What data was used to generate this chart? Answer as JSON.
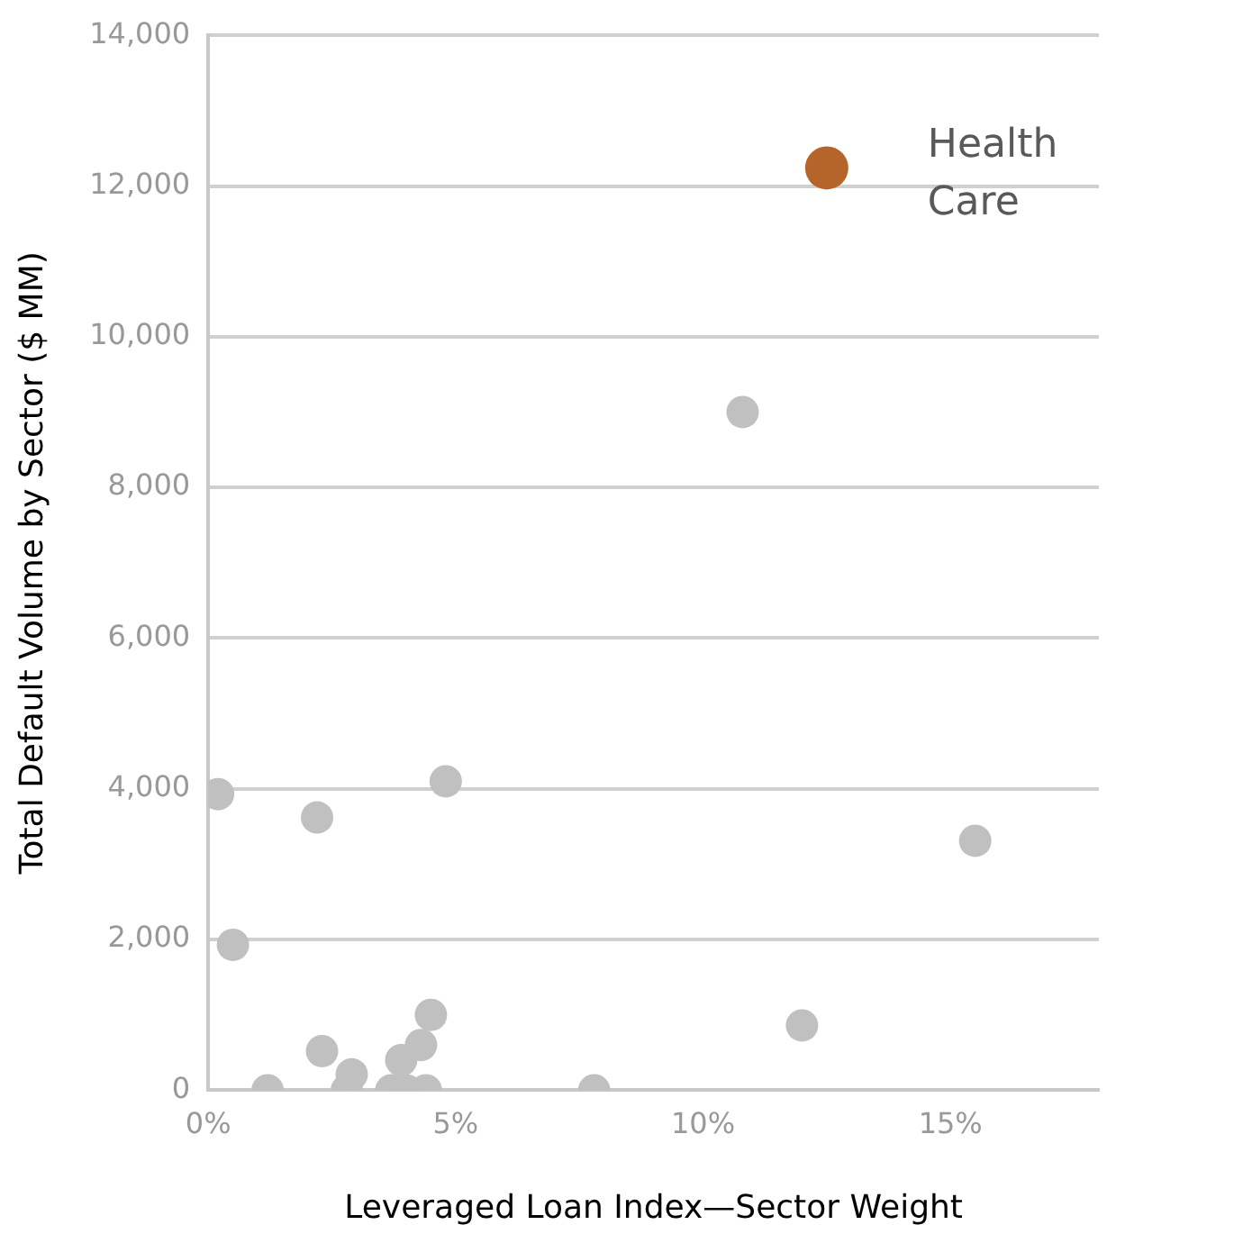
{
  "chart_data": {
    "type": "scatter",
    "xlabel": "Leveraged Loan Index—Sector Weight",
    "ylabel": "Total Default Volume by Sector ($ MM)",
    "xlim": [
      0,
      18
    ],
    "xticks": [
      {
        "value": 0,
        "label": "0%"
      },
      {
        "value": 5,
        "label": "5%"
      },
      {
        "value": 10,
        "label": "10%"
      },
      {
        "value": 15,
        "label": "15%"
      }
    ],
    "ylim": [
      0,
      14000
    ],
    "yticks": [
      0,
      {
        "value": 2000,
        "label": "2,000"
      },
      {
        "value": 4000,
        "label": "4,000"
      },
      {
        "value": 6000,
        "label": "6,000"
      },
      {
        "value": 8000,
        "label": "8,000"
      },
      {
        "value": 10000,
        "label": "10,000"
      },
      {
        "value": 12000,
        "label": "12,000"
      },
      {
        "value": 14000,
        "label": "14,000"
      }
    ],
    "grid": "y",
    "legend": false,
    "marker": "circle",
    "series": [
      {
        "color": "#c0c0c0",
        "x": [
          0.2,
          0.5,
          1.2,
          2.2,
          2.3,
          2.9,
          2.8,
          3.7,
          4.0,
          3.9,
          4.3,
          4.4,
          4.5,
          4.8,
          7.8,
          10.8,
          12.0,
          15.5
        ],
        "values": [
          3930,
          1930,
          0,
          3620,
          520,
          210,
          0,
          0,
          0,
          400,
          600,
          0,
          1000,
          4100,
          0,
          9000,
          860,
          3310
        ]
      },
      {
        "name": "Health Care",
        "color": "#b5652a",
        "x": [
          12.5
        ],
        "values": [
          12240
        ]
      }
    ]
  }
}
